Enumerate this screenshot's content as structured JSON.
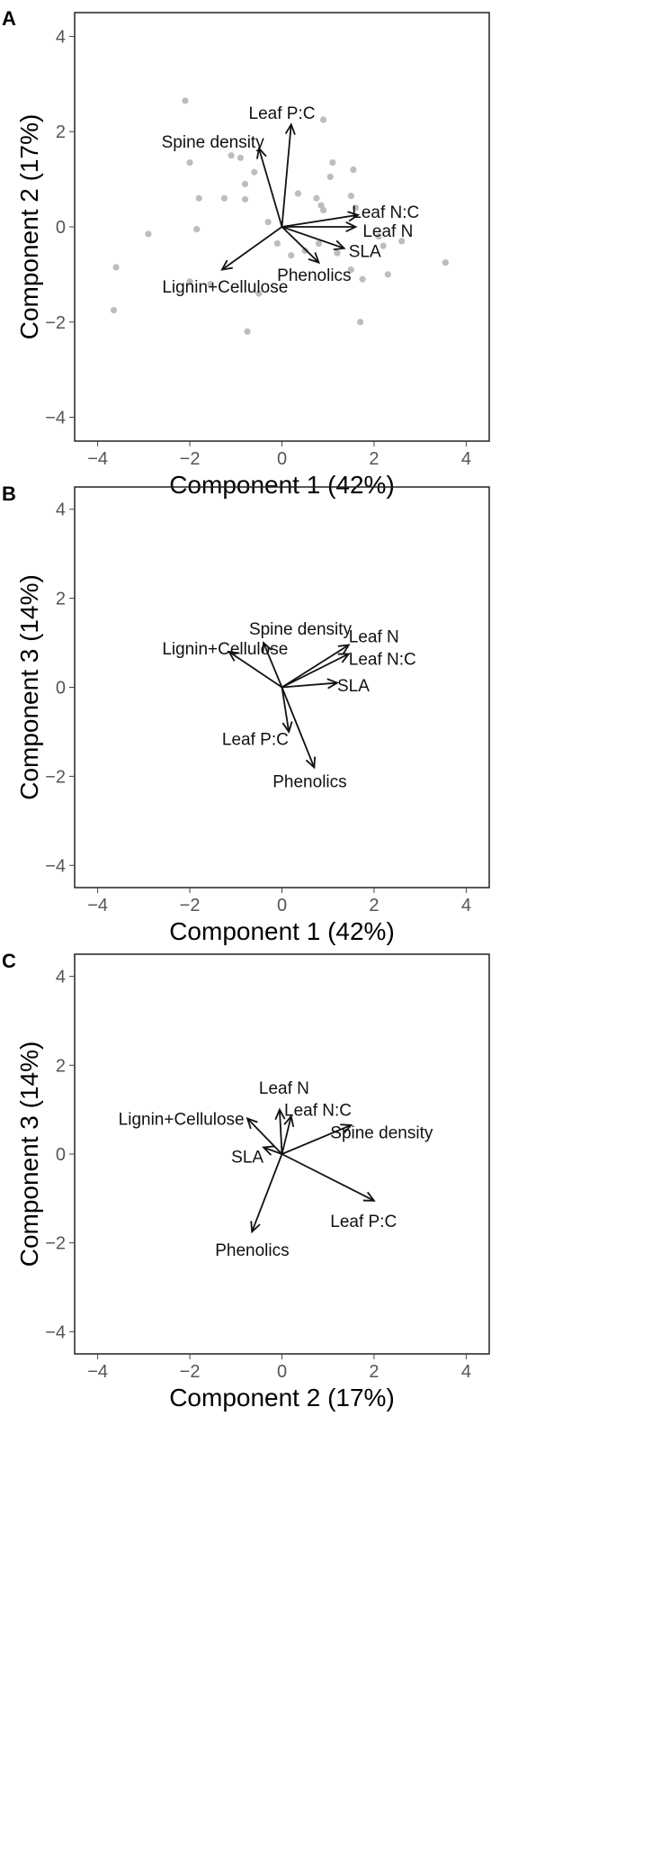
{
  "chart_data": [
    {
      "type": "scatter",
      "panel": "A",
      "xlabel": "Component 1 (42%)",
      "ylabel": "Component 2 (17%)",
      "xlim": [
        -4.5,
        4.5
      ],
      "ylim": [
        -4.5,
        4.5
      ],
      "xticks": [
        -4,
        -2,
        0,
        2,
        4
      ],
      "yticks": [
        -4,
        -2,
        0,
        2,
        4
      ],
      "point_color": "#bdbdbd",
      "points": [
        {
          "x": -2.1,
          "y": 2.65
        },
        {
          "x": 0.9,
          "y": 2.25
        },
        {
          "x": -2.0,
          "y": 1.35
        },
        {
          "x": -1.1,
          "y": 1.5
        },
        {
          "x": -0.9,
          "y": 1.45
        },
        {
          "x": 1.1,
          "y": 1.35
        },
        {
          "x": 1.55,
          "y": 1.2
        },
        {
          "x": -0.6,
          "y": 1.15
        },
        {
          "x": 1.05,
          "y": 1.05
        },
        {
          "x": -0.8,
          "y": 0.9
        },
        {
          "x": -1.8,
          "y": 0.6
        },
        {
          "x": -1.25,
          "y": 0.6
        },
        {
          "x": -0.8,
          "y": 0.58
        },
        {
          "x": 0.35,
          "y": 0.7
        },
        {
          "x": 0.75,
          "y": 0.6
        },
        {
          "x": 0.85,
          "y": 0.45
        },
        {
          "x": 1.5,
          "y": 0.65
        },
        {
          "x": -1.85,
          "y": -0.05
        },
        {
          "x": -2.9,
          "y": -0.15
        },
        {
          "x": -0.3,
          "y": 0.1
        },
        {
          "x": 0.9,
          "y": 0.35
        },
        {
          "x": 1.6,
          "y": 0.4
        },
        {
          "x": 2.1,
          "y": -0.2
        },
        {
          "x": 2.6,
          "y": -0.3
        },
        {
          "x": 0.2,
          "y": -0.6
        },
        {
          "x": 0.8,
          "y": -0.35
        },
        {
          "x": 1.5,
          "y": -0.9
        },
        {
          "x": 1.75,
          "y": -1.1
        },
        {
          "x": 2.3,
          "y": -1.0
        },
        {
          "x": 3.55,
          "y": -0.75
        },
        {
          "x": -3.6,
          "y": -0.85
        },
        {
          "x": -2.0,
          "y": -1.15
        },
        {
          "x": -1.55,
          "y": -1.2
        },
        {
          "x": -0.5,
          "y": -1.4
        },
        {
          "x": -3.65,
          "y": -1.75
        },
        {
          "x": 1.7,
          "y": -2.0
        },
        {
          "x": -0.75,
          "y": -2.2
        },
        {
          "x": -0.1,
          "y": -0.35
        },
        {
          "x": 0.5,
          "y": -0.5
        },
        {
          "x": 1.2,
          "y": -0.55
        },
        {
          "x": 2.2,
          "y": -0.4
        }
      ],
      "vectors": [
        {
          "label": "Leaf P:C",
          "x": 0.2,
          "y": 2.15,
          "lx": 0.0,
          "ly": 2.4,
          "anchor": "middle"
        },
        {
          "label": "Spine density",
          "x": -0.5,
          "y": 1.65,
          "lx": -1.5,
          "ly": 1.8,
          "anchor": "middle"
        },
        {
          "label": "Leaf N:C",
          "x": 1.65,
          "y": 0.25,
          "lx": 2.25,
          "ly": 0.32,
          "anchor": "middle"
        },
        {
          "label": "Leaf N",
          "x": 1.6,
          "y": 0.0,
          "lx": 2.3,
          "ly": -0.08,
          "anchor": "middle"
        },
        {
          "label": "SLA",
          "x": 1.35,
          "y": -0.45,
          "lx": 1.8,
          "ly": -0.5,
          "anchor": "middle"
        },
        {
          "label": "Phenolics",
          "x": 0.8,
          "y": -0.75,
          "lx": 0.7,
          "ly": -1.0,
          "anchor": "middle"
        },
        {
          "label": "Lignin+Cellulose",
          "x": -1.3,
          "y": -0.9,
          "lx": -2.6,
          "ly": -1.25,
          "anchor": "start"
        }
      ]
    },
    {
      "type": "scatter",
      "panel": "B",
      "xlabel": "Component 1 (42%)",
      "ylabel": "Component 3 (14%)",
      "xlim": [
        -4.5,
        4.5
      ],
      "ylim": [
        -4.5,
        4.5
      ],
      "xticks": [
        -4,
        -2,
        0,
        2,
        4
      ],
      "yticks": [
        -4,
        -2,
        0,
        2,
        4
      ],
      "points": [],
      "vectors": [
        {
          "label": "Spine density",
          "x": -0.4,
          "y": 1.0,
          "lx": 0.4,
          "ly": 1.32,
          "anchor": "middle"
        },
        {
          "label": "Lignin+Cellulose",
          "x": -1.15,
          "y": 0.8,
          "lx": -2.6,
          "ly": 0.88,
          "anchor": "start"
        },
        {
          "label": "Leaf N",
          "x": 1.45,
          "y": 0.95,
          "lx": 1.45,
          "ly": 1.15,
          "anchor": "start"
        },
        {
          "label": "Leaf N:C",
          "x": 1.45,
          "y": 0.75,
          "lx": 1.45,
          "ly": 0.65,
          "anchor": "start"
        },
        {
          "label": "SLA",
          "x": 1.2,
          "y": 0.1,
          "lx": 1.2,
          "ly": 0.05,
          "anchor": "start"
        },
        {
          "label": "Leaf P:C",
          "x": 0.15,
          "y": -1.0,
          "lx": -1.3,
          "ly": -1.15,
          "anchor": "start"
        },
        {
          "label": "Phenolics",
          "x": 0.7,
          "y": -1.8,
          "lx": -0.2,
          "ly": -2.1,
          "anchor": "start"
        }
      ]
    },
    {
      "type": "scatter",
      "panel": "C",
      "xlabel": "Component 2 (17%)",
      "ylabel": "Component 3 (14%)",
      "xlim": [
        -4.5,
        4.5
      ],
      "ylim": [
        -4.5,
        4.5
      ],
      "xticks": [
        -4,
        -2,
        0,
        2,
        4
      ],
      "yticks": [
        -4,
        -2,
        0,
        2,
        4
      ],
      "points": [],
      "vectors": [
        {
          "label": "Leaf N",
          "x": -0.05,
          "y": 1.0,
          "lx": -0.5,
          "ly": 1.5,
          "anchor": "start"
        },
        {
          "label": "Leaf N:C",
          "x": 0.2,
          "y": 0.85,
          "lx": 0.05,
          "ly": 1.0,
          "anchor": "start"
        },
        {
          "label": "Lignin+Cellulose",
          "x": -0.75,
          "y": 0.8,
          "lx": -3.55,
          "ly": 0.8,
          "anchor": "start"
        },
        {
          "label": "Spine density",
          "x": 1.5,
          "y": 0.65,
          "lx": 1.05,
          "ly": 0.5,
          "anchor": "start"
        },
        {
          "label": "SLA",
          "x": -0.4,
          "y": 0.15,
          "lx": -1.1,
          "ly": -0.05,
          "anchor": "start"
        },
        {
          "label": "Leaf P:C",
          "x": 2.0,
          "y": -1.05,
          "lx": 1.05,
          "ly": -1.5,
          "anchor": "start"
        },
        {
          "label": "Phenolics",
          "x": -0.65,
          "y": -1.75,
          "lx": -1.45,
          "ly": -2.15,
          "anchor": "start"
        }
      ]
    }
  ]
}
